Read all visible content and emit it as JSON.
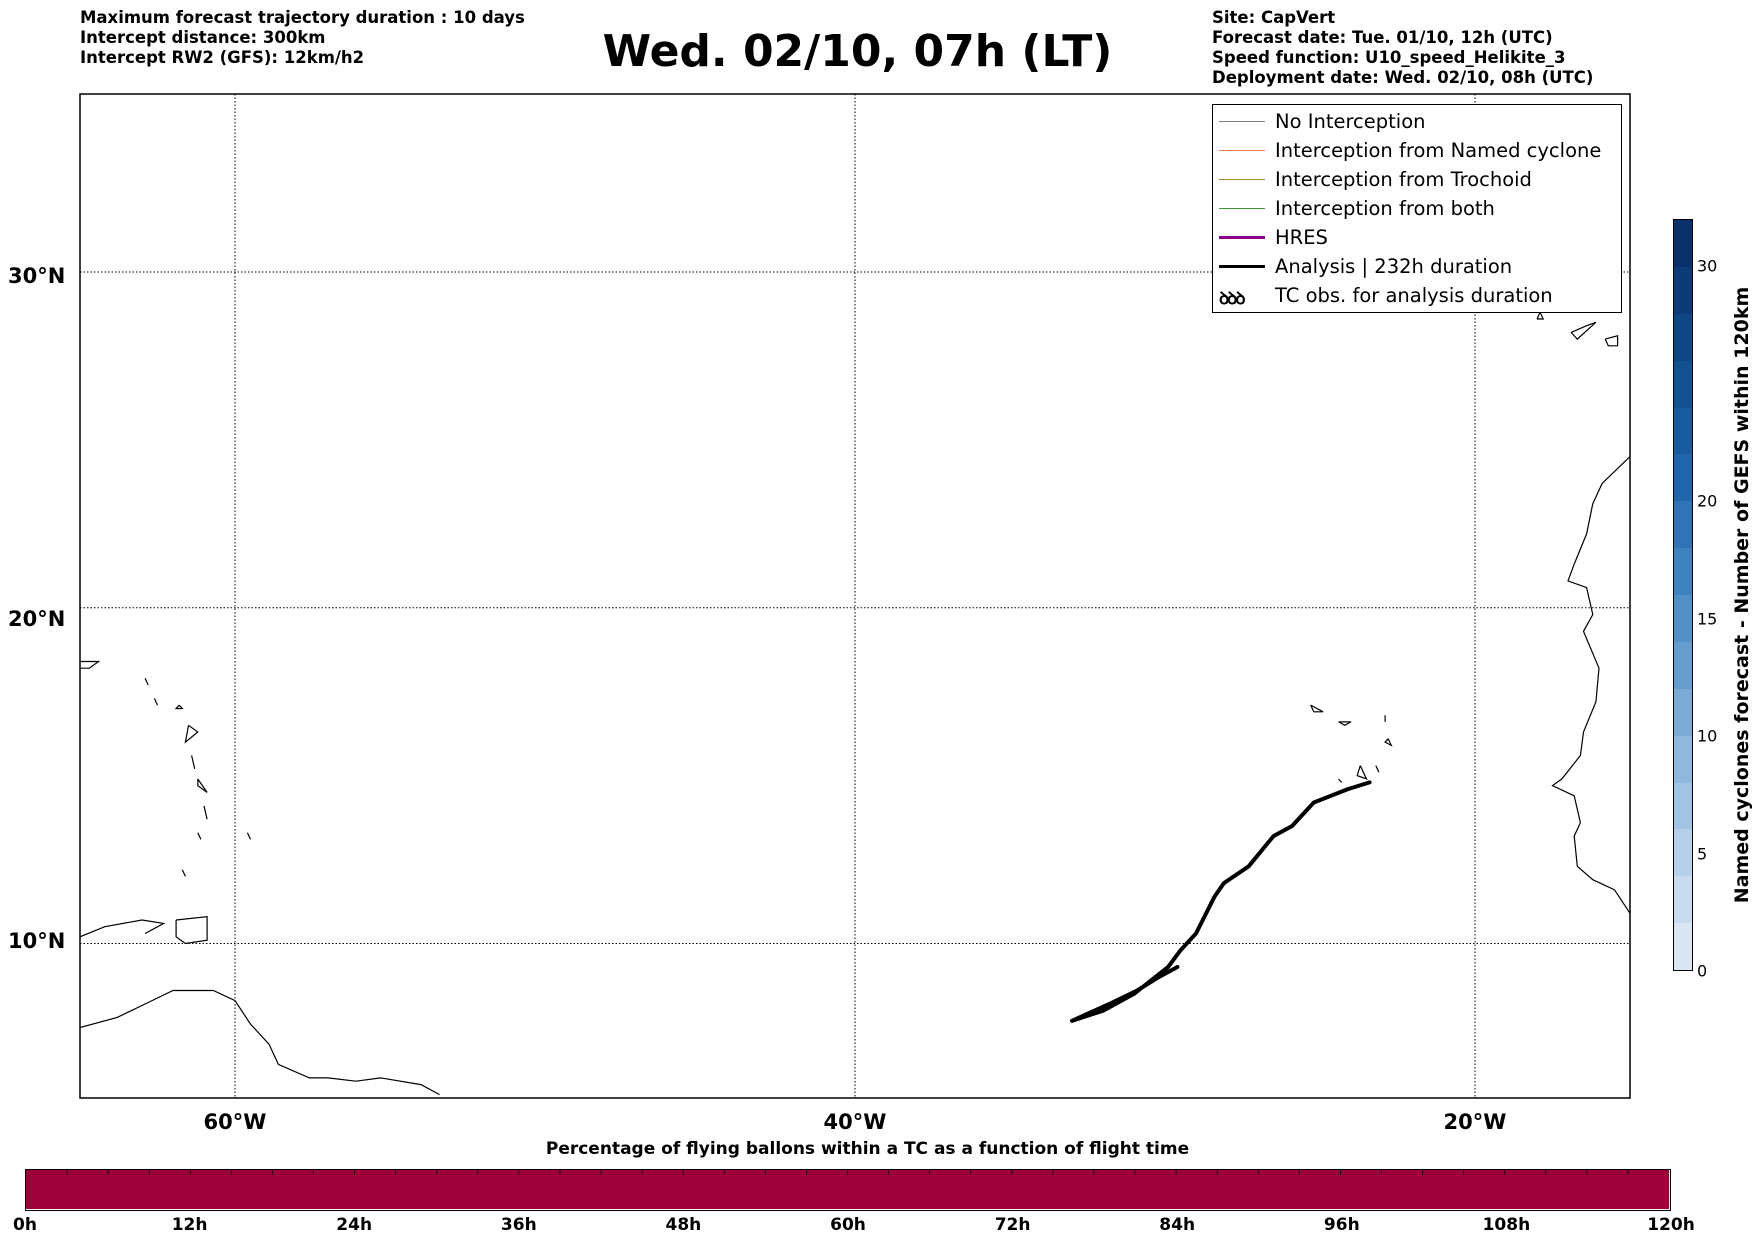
{
  "header_left": [
    "Maximum forecast trajectory duration : 10 days",
    "Intercept distance: 300km",
    "Intercept RW2 (GFS):  12km/h2"
  ],
  "title": "Wed. 02/10, 07h (LT)",
  "header_right": [
    "Site: CapVert",
    "Forecast date: Tue. 01/10, 12h (UTC)",
    "Speed function: U10_speed_Helikite_3",
    "Deployment date: Wed. 02/10, 08h (UTC)"
  ],
  "map": {
    "lat_labels": [
      "30°N",
      "20°N",
      "10°N"
    ],
    "lon_labels": [
      "60°W",
      "40°W",
      "20°W"
    ],
    "lat_gridlines": [
      30,
      20,
      10
    ],
    "lon_gridlines": [
      -60,
      -40,
      -20
    ],
    "lat_range": [
      5.4,
      35.3
    ],
    "lon_range": [
      -65,
      -15
    ]
  },
  "legend": [
    {
      "label": "No Interception",
      "color": "#808080",
      "style": "thin"
    },
    {
      "label": "Interception from Named cyclone",
      "color": "#f08050",
      "style": "thin"
    },
    {
      "label": "Interception from Trochoid",
      "color": "#9a8a30",
      "style": "thin"
    },
    {
      "label": "Interception from both",
      "color": "#3c9a3c",
      "style": "thin"
    },
    {
      "label": "HRES",
      "color": "#8b008b",
      "style": "thick"
    },
    {
      "label": "Analysis | 232h duration",
      "color": "#000000",
      "style": "thick"
    },
    {
      "label": "TC obs. for analysis duration",
      "color": "#000000",
      "style": "icon",
      "icon": "ꝺꝺꝺ"
    }
  ],
  "colorbar_vertical": {
    "label": "Named cyclones forecast - Number of GEFS within 120km",
    "ticks": [
      0,
      5,
      10,
      15,
      20,
      30
    ],
    "range": [
      0,
      32
    ],
    "colors": [
      "#dbe6f5",
      "#c8dbef",
      "#b5d0ea",
      "#a2c4e4",
      "#8fb8de",
      "#7aaad6",
      "#659dcf",
      "#5290c8",
      "#3f82c0",
      "#2e74b7",
      "#2066ac",
      "#185c9f",
      "#125192",
      "#0e4785",
      "#0b3c77",
      "#08306b"
    ]
  },
  "colorbar_horizontal": {
    "title": "Percentage of flying ballons within a TC as a function of flight time",
    "ticks": [
      "0h",
      "12h",
      "24h",
      "36h",
      "48h",
      "60h",
      "72h",
      "84h",
      "96h",
      "108h",
      "120h"
    ],
    "fill_color": "#9e003a"
  },
  "trajectory": {
    "name": "Analysis | 232h duration",
    "points": [
      [
        -23.4,
        14.8
      ],
      [
        -24.1,
        14.6
      ],
      [
        -25.2,
        14.2
      ],
      [
        -25.9,
        13.5
      ],
      [
        -26.5,
        13.2
      ],
      [
        -27.3,
        12.3
      ],
      [
        -28.1,
        11.8
      ],
      [
        -28.4,
        11.4
      ],
      [
        -29.0,
        10.3
      ],
      [
        -29.5,
        9.8
      ],
      [
        -29.9,
        9.3
      ],
      [
        -31.0,
        8.5
      ],
      [
        -32.0,
        8.0
      ],
      [
        -33.0,
        7.7
      ],
      [
        -31.8,
        8.2
      ],
      [
        -30.9,
        8.6
      ],
      [
        -30.2,
        9.0
      ],
      [
        -29.6,
        9.3
      ]
    ]
  },
  "coastlines": {
    "west_africa": [
      [
        -15,
        24.5
      ],
      [
        -15.9,
        23.7
      ],
      [
        -16.2,
        23.1
      ],
      [
        -16.4,
        22.2
      ],
      [
        -16.8,
        21.3
      ],
      [
        -17.0,
        20.8
      ],
      [
        -16.4,
        20.6
      ],
      [
        -16.2,
        19.8
      ],
      [
        -16.5,
        19.3
      ],
      [
        -16.0,
        18.2
      ],
      [
        -16.1,
        17.2
      ],
      [
        -16.5,
        16.3
      ],
      [
        -16.6,
        15.6
      ],
      [
        -17.2,
        14.9
      ],
      [
        -17.5,
        14.7
      ],
      [
        -16.8,
        14.4
      ],
      [
        -16.6,
        13.6
      ],
      [
        -16.8,
        13.2
      ],
      [
        -16.7,
        12.3
      ],
      [
        -16.2,
        11.9
      ],
      [
        -15.5,
        11.6
      ],
      [
        -15.0,
        10.9
      ],
      [
        -15,
        10.8
      ]
    ],
    "south_america": [
      [
        -65,
        7.5
      ],
      [
        -63.8,
        7.8
      ],
      [
        -62.9,
        8.2
      ],
      [
        -62.0,
        8.6
      ],
      [
        -60.7,
        8.6
      ],
      [
        -60.0,
        8.3
      ],
      [
        -59.5,
        7.6
      ],
      [
        -58.9,
        7.0
      ],
      [
        -58.6,
        6.4
      ],
      [
        -57.6,
        6.0
      ],
      [
        -57.0,
        6.0
      ],
      [
        -56.1,
        5.9
      ],
      [
        -55.3,
        6.0
      ],
      [
        -54.0,
        5.8
      ],
      [
        -53.4,
        5.5
      ]
    ],
    "trinidad": [
      [
        -61.9,
        10.7
      ],
      [
        -60.9,
        10.8
      ],
      [
        -60.9,
        10.1
      ],
      [
        -61.6,
        10.0
      ],
      [
        -61.9,
        10.2
      ],
      [
        -61.9,
        10.7
      ]
    ],
    "venezuela_coast": [
      [
        -65,
        10.2
      ],
      [
        -64.2,
        10.5
      ],
      [
        -63.0,
        10.7
      ],
      [
        -62.3,
        10.6
      ],
      [
        -62.9,
        10.3
      ]
    ],
    "canaries": [
      [
        [
          -18.0,
          28.6
        ],
        [
          -17.8,
          28.6
        ],
        [
          -17.9,
          28.8
        ],
        [
          -18.0,
          28.6
        ]
      ],
      [
        [
          -16.9,
          28.2
        ],
        [
          -16.4,
          28.4
        ],
        [
          -16.1,
          28.5
        ],
        [
          -16.7,
          28.0
        ],
        [
          -16.9,
          28.2
        ]
      ],
      [
        [
          -15.8,
          28.0
        ],
        [
          -15.4,
          28.1
        ],
        [
          -15.4,
          27.8
        ],
        [
          -15.7,
          27.8
        ],
        [
          -15.8,
          28.0
        ]
      ],
      [
        [
          -14.2,
          28.3
        ],
        [
          -13.9,
          28.5
        ],
        [
          -14.4,
          28.0
        ],
        [
          -14.2,
          28.3
        ]
      ]
    ],
    "cape_verde": [
      [
        [
          -25.3,
          17.1
        ],
        [
          -24.9,
          16.9
        ],
        [
          -25.2,
          16.9
        ],
        [
          -25.3,
          17.1
        ]
      ],
      [
        [
          -24.4,
          16.6
        ],
        [
          -24.0,
          16.6
        ],
        [
          -24.2,
          16.5
        ],
        [
          -24.4,
          16.6
        ]
      ],
      [
        [
          -22.9,
          16.8
        ],
        [
          -22.9,
          16.6
        ],
        [
          -22.9,
          16.8
        ]
      ],
      [
        [
          -22.8,
          16.1
        ],
        [
          -22.7,
          15.9
        ],
        [
          -22.9,
          16.0
        ],
        [
          -22.8,
          16.1
        ]
      ],
      [
        [
          -23.7,
          15.3
        ],
        [
          -23.5,
          14.9
        ],
        [
          -23.8,
          15.0
        ],
        [
          -23.7,
          15.3
        ]
      ],
      [
        [
          -24.4,
          14.9
        ],
        [
          -24.3,
          14.8
        ],
        [
          -24.4,
          14.9
        ]
      ],
      [
        [
          -23.2,
          15.3
        ],
        [
          -23.1,
          15.1
        ],
        [
          -23.2,
          15.3
        ]
      ]
    ],
    "lesser_antilles": [
      [
        [
          -61.8,
          17.1
        ],
        [
          -61.7,
          17.0
        ],
        [
          -61.9,
          17.0
        ],
        [
          -61.8,
          17.1
        ]
      ],
      [
        [
          -61.5,
          16.5
        ],
        [
          -61.2,
          16.3
        ],
        [
          -61.6,
          16.0
        ],
        [
          -61.5,
          16.5
        ]
      ],
      [
        [
          -61.4,
          15.6
        ],
        [
          -61.3,
          15.2
        ],
        [
          -61.4,
          15.6
        ]
      ],
      [
        [
          -61.2,
          14.9
        ],
        [
          -60.9,
          14.5
        ],
        [
          -61.2,
          14.7
        ],
        [
          -61.2,
          14.9
        ]
      ],
      [
        [
          -61.0,
          14.1
        ],
        [
          -60.9,
          13.7
        ],
        [
          -61.0,
          14.1
        ]
      ],
      [
        [
          -59.6,
          13.3
        ],
        [
          -59.5,
          13.1
        ],
        [
          -59.6,
          13.3
        ]
      ],
      [
        [
          -61.2,
          13.3
        ],
        [
          -61.1,
          13.1
        ],
        [
          -61.2,
          13.3
        ]
      ],
      [
        [
          -61.7,
          12.2
        ],
        [
          -61.6,
          12.0
        ],
        [
          -61.7,
          12.2
        ]
      ],
      [
        [
          -65,
          18.4
        ],
        [
          -64.4,
          18.4
        ],
        [
          -64.7,
          18.2
        ],
        [
          -65,
          18.2
        ]
      ],
      [
        [
          -62.9,
          17.9
        ],
        [
          -62.8,
          17.7
        ],
        [
          -62.9,
          17.9
        ]
      ],
      [
        [
          -62.6,
          17.3
        ],
        [
          -62.5,
          17.1
        ],
        [
          -62.6,
          17.3
        ]
      ]
    ]
  }
}
